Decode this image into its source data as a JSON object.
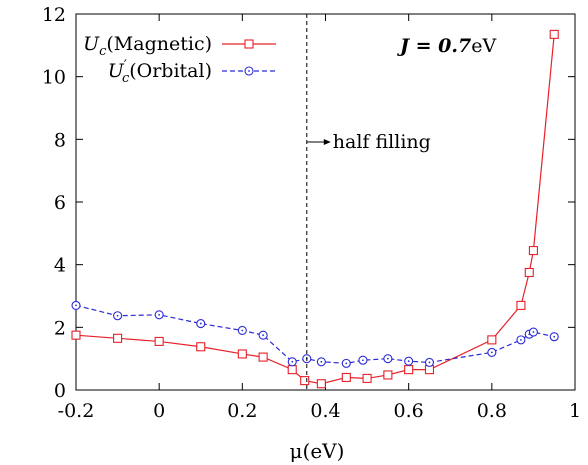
{
  "chart_data": {
    "type": "line",
    "xlabel": "μ(eV)",
    "ylabel": "",
    "xlim": [
      -0.2,
      1.0
    ],
    "ylim": [
      0,
      12
    ],
    "xticks": [
      "-0.2",
      "0",
      "0.2",
      "0.4",
      "0.6",
      "0.8",
      "1"
    ],
    "yticks": [
      "0",
      "2",
      "4",
      "6",
      "8",
      "10",
      "12"
    ],
    "grid": false,
    "legend_position": "top-left",
    "annotation": {
      "j_label": "J = 0.7",
      "j_unit": "eV",
      "half_filling_text": "half filling",
      "half_filling_x": 0.355
    },
    "series": [
      {
        "name": "Uc(Magnetic)",
        "legend_main": "U",
        "legend_sub": "c",
        "legend_prime": "",
        "legend_rest": "(Magnetic)",
        "color": "#e8202a",
        "dash": "solid",
        "marker": "square",
        "x": [
          -0.2,
          -0.1,
          0.0,
          0.1,
          0.2,
          0.25,
          0.32,
          0.35,
          0.39,
          0.45,
          0.5,
          0.55,
          0.6,
          0.65,
          0.8,
          0.87,
          0.89,
          0.9,
          0.95
        ],
        "y": [
          1.75,
          1.65,
          1.55,
          1.38,
          1.15,
          1.05,
          0.65,
          0.3,
          0.2,
          0.4,
          0.37,
          0.48,
          0.65,
          0.65,
          1.6,
          2.7,
          3.75,
          4.45,
          11.35
        ]
      },
      {
        "name": "U'c(Orbital)",
        "legend_main": "U",
        "legend_sub": "c",
        "legend_prime": "′",
        "legend_rest": "(Orbital)",
        "color": "#2b2bd6",
        "dash": "dashed",
        "marker": "circle",
        "x": [
          -0.2,
          -0.1,
          0.0,
          0.1,
          0.2,
          0.25,
          0.32,
          0.355,
          0.39,
          0.45,
          0.49,
          0.55,
          0.6,
          0.65,
          0.8,
          0.87,
          0.89,
          0.9,
          0.95
        ],
        "y": [
          2.7,
          2.37,
          2.4,
          2.12,
          1.9,
          1.75,
          0.9,
          1.0,
          0.9,
          0.85,
          0.95,
          1.0,
          0.92,
          0.88,
          1.2,
          1.6,
          1.78,
          1.85,
          1.7
        ]
      }
    ]
  }
}
